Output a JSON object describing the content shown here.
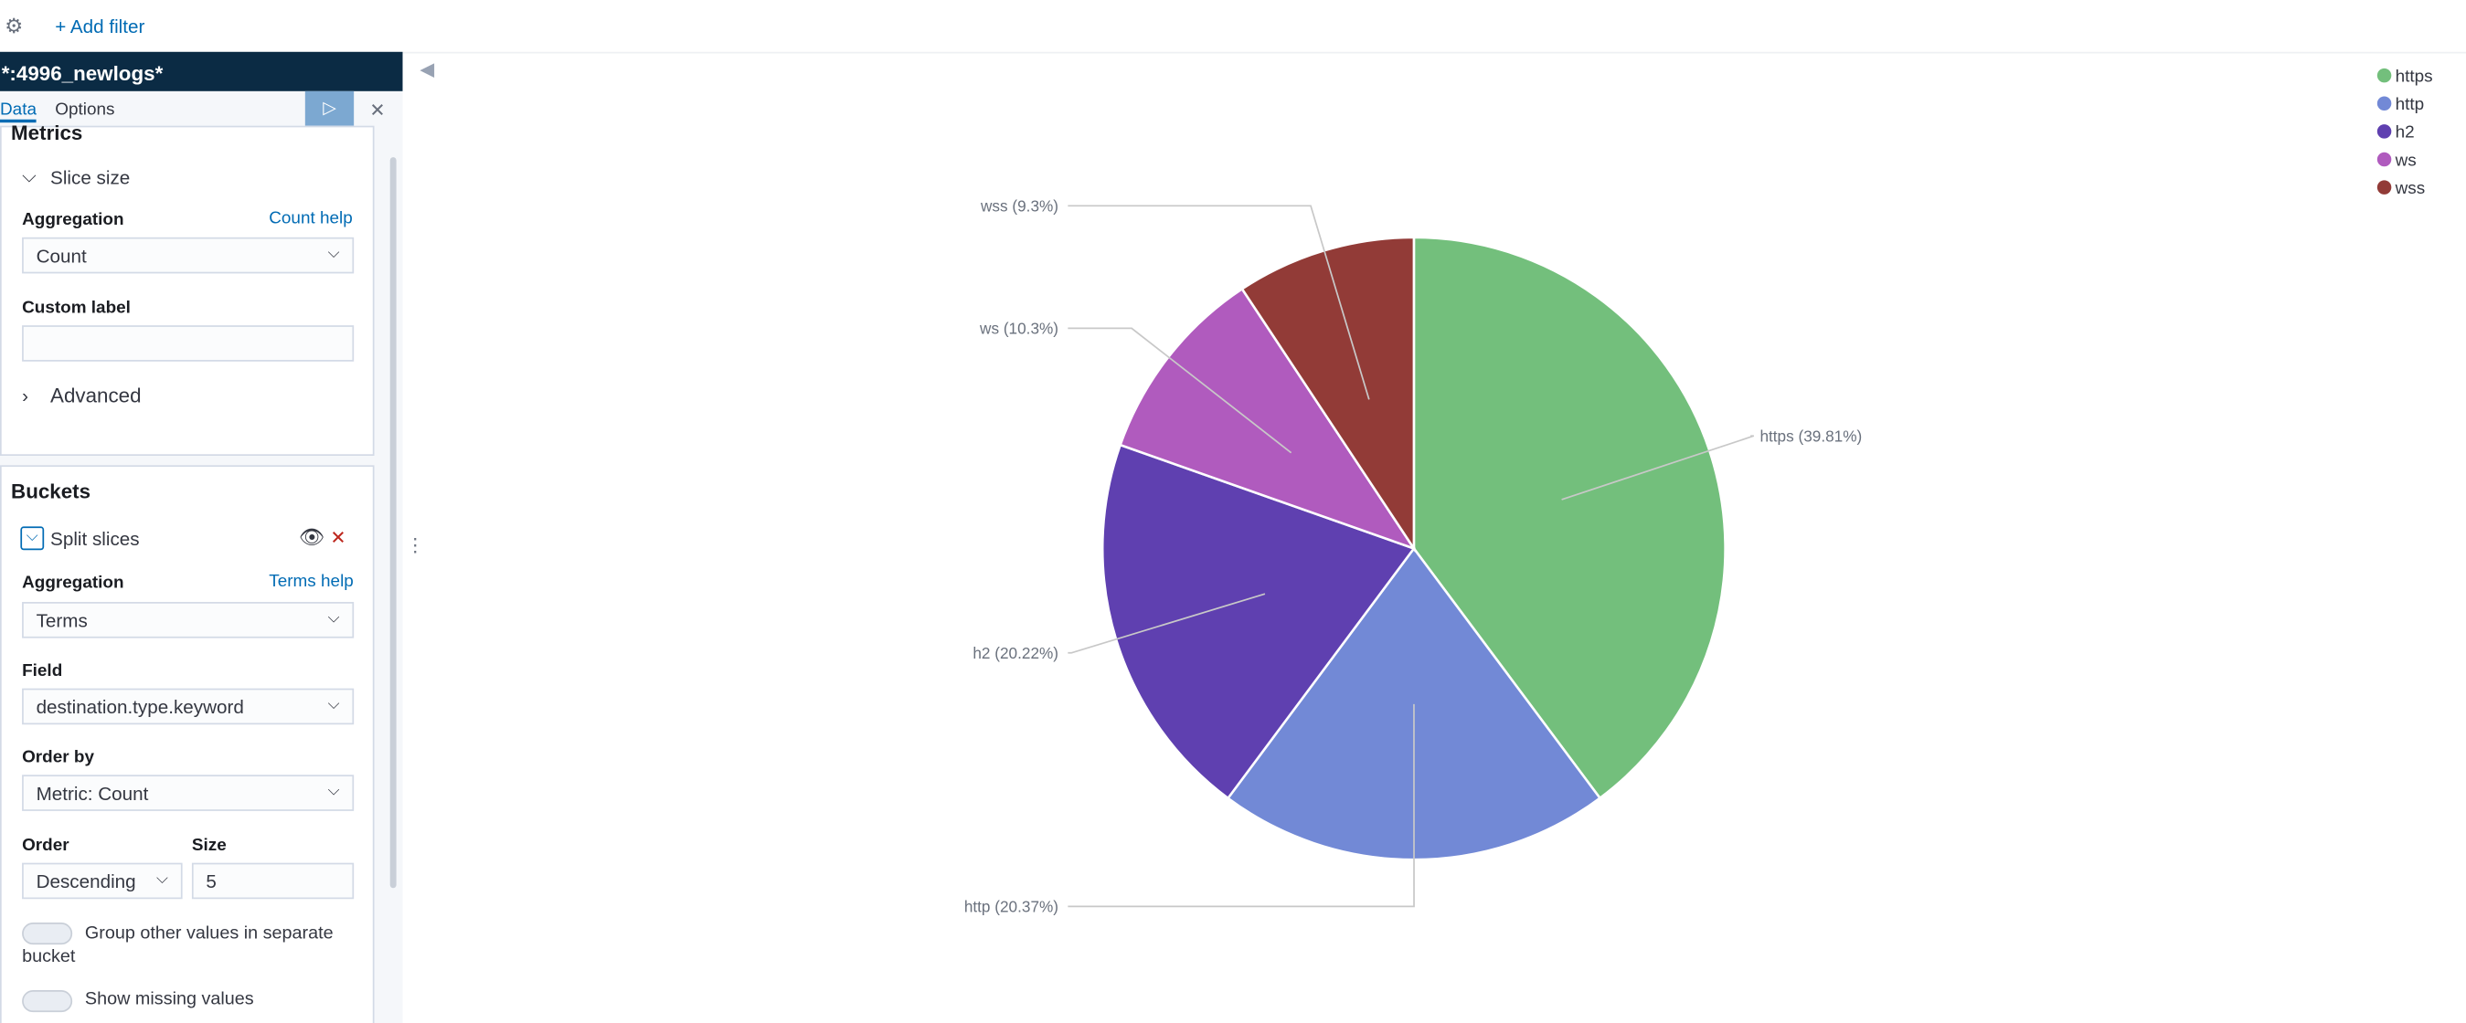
{
  "filter_bar": {
    "add_filter": "+ Add filter"
  },
  "sidebar": {
    "index_pattern": "*:4996_newlogs*",
    "tabs": [
      "Data",
      "Options"
    ],
    "metrics": {
      "title": "Metrics",
      "slice_size": "Slice size",
      "aggregation_label": "Aggregation",
      "help": "Count help",
      "aggregation": "Count",
      "custom_label": "Custom label",
      "advanced": "Advanced"
    },
    "buckets": {
      "title": "Buckets",
      "split": "Split slices",
      "aggregation_label": "Aggregation",
      "help": "Terms help",
      "aggregation": "Terms",
      "field_label": "Field",
      "field": "destination.type.keyword",
      "order_by_label": "Order by",
      "order_by": "Metric: Count",
      "order_label": "Order",
      "order": "Descending",
      "size_label": "Size",
      "size": 5,
      "group_other": "Group other values in separate bucket",
      "show_missing": "Show missing values"
    }
  },
  "chart_data": {
    "type": "pie",
    "categories": [
      "https",
      "http",
      "h2",
      "ws",
      "wss"
    ],
    "values": [
      39.81,
      20.37,
      20.22,
      10.3,
      9.3
    ],
    "value_labels": [
      "https (39.81%)",
      "http (20.37%)",
      "h2 (20.22%)",
      "ws (10.3%)",
      "wss (9.3%)"
    ],
    "colors": [
      "#73bf7c",
      "#7289d6",
      "#5f40b0",
      "#b05bbe",
      "#923b37"
    ],
    "legend": "top-right"
  }
}
